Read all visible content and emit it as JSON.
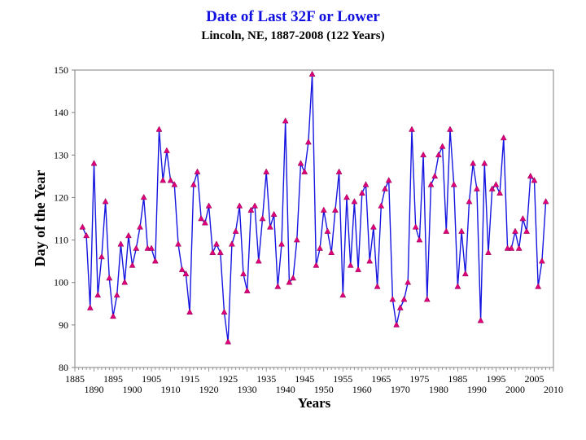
{
  "chart_data": {
    "type": "line",
    "title": "Date of Last 32F or Lower",
    "subtitle": "Lincoln, NE, 1887-2008 (122 Years)",
    "xlabel": "Years",
    "ylabel": "Day of the Year",
    "xlim": [
      1885,
      2010
    ],
    "ylim": [
      80,
      150
    ],
    "x_ticks_upper": [
      1885,
      1895,
      1905,
      1915,
      1925,
      1935,
      1945,
      1955,
      1965,
      1975,
      1985,
      1995,
      2005
    ],
    "x_ticks_lower": [
      1890,
      1900,
      1910,
      1920,
      1930,
      1940,
      1950,
      1960,
      1970,
      1980,
      1990,
      2000,
      2010
    ],
    "y_ticks": [
      80,
      90,
      100,
      110,
      120,
      130,
      140,
      150
    ],
    "grid": false,
    "line_color": "#1515e0",
    "marker_color": "#e0007a",
    "series": [
      {
        "x": [
          1887,
          1888,
          1889,
          1890,
          1891,
          1892,
          1893,
          1894,
          1895,
          1896,
          1897,
          1898,
          1899,
          1900,
          1901,
          1902,
          1903,
          1904,
          1905,
          1906,
          1907,
          1908,
          1909,
          1910,
          1911,
          1912,
          1913,
          1914,
          1915,
          1916,
          1917,
          1918,
          1919,
          1920,
          1921,
          1922,
          1923,
          1924,
          1925,
          1926,
          1927,
          1928,
          1929,
          1930,
          1931,
          1932,
          1933,
          1934,
          1935,
          1936,
          1937,
          1938,
          1939,
          1940,
          1941,
          1942,
          1943,
          1944,
          1945,
          1946,
          1947,
          1948,
          1949,
          1950,
          1951,
          1952,
          1953,
          1954,
          1955,
          1956,
          1957,
          1958,
          1959,
          1960,
          1961,
          1962,
          1963,
          1964,
          1965,
          1966,
          1967,
          1968,
          1969,
          1970,
          1971,
          1972,
          1973,
          1974,
          1975,
          1976,
          1977,
          1978,
          1979,
          1980,
          1981,
          1982,
          1983,
          1984,
          1985,
          1986,
          1987,
          1988,
          1989,
          1990,
          1991,
          1992,
          1993,
          1994,
          1995,
          1996,
          1997,
          1998,
          1999,
          2000,
          2001,
          2002,
          2003,
          2004,
          2005,
          2006,
          2007,
          2008
        ],
        "values": [
          113,
          111,
          94,
          128,
          97,
          106,
          119,
          101,
          92,
          97,
          109,
          100,
          111,
          104,
          108,
          113,
          120,
          108,
          108,
          105,
          136,
          124,
          131,
          124,
          123,
          109,
          103,
          102,
          93,
          123,
          126,
          115,
          114,
          118,
          107,
          109,
          107,
          93,
          86,
          109,
          112,
          118,
          102,
          98,
          117,
          118,
          105,
          115,
          126,
          113,
          116,
          99,
          109,
          138,
          100,
          101,
          110,
          128,
          126,
          133,
          149,
          104,
          108,
          117,
          112,
          107,
          117,
          126,
          97,
          120,
          104,
          119,
          103,
          121,
          123,
          105,
          113,
          99,
          118,
          122,
          124,
          96,
          90,
          94,
          96,
          100,
          136,
          113,
          110,
          130,
          96,
          123,
          125,
          130,
          132,
          112,
          136,
          123,
          99,
          112,
          102,
          119,
          128,
          122,
          91,
          128,
          107,
          122,
          123,
          121,
          134,
          108,
          108,
          112,
          108,
          115,
          112,
          125,
          124,
          99,
          105,
          119
        ]
      }
    ]
  }
}
